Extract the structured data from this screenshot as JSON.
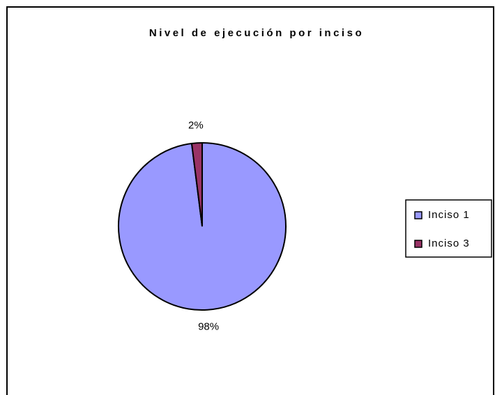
{
  "chart_data": {
    "type": "pie",
    "title": "Nivel de ejecución por inciso",
    "categories": [
      "Inciso 1",
      "Inciso 3"
    ],
    "values": [
      98,
      2
    ],
    "value_labels": [
      "98%",
      "2%"
    ],
    "colors": [
      "#9999ff",
      "#993366"
    ],
    "legend": "right"
  }
}
